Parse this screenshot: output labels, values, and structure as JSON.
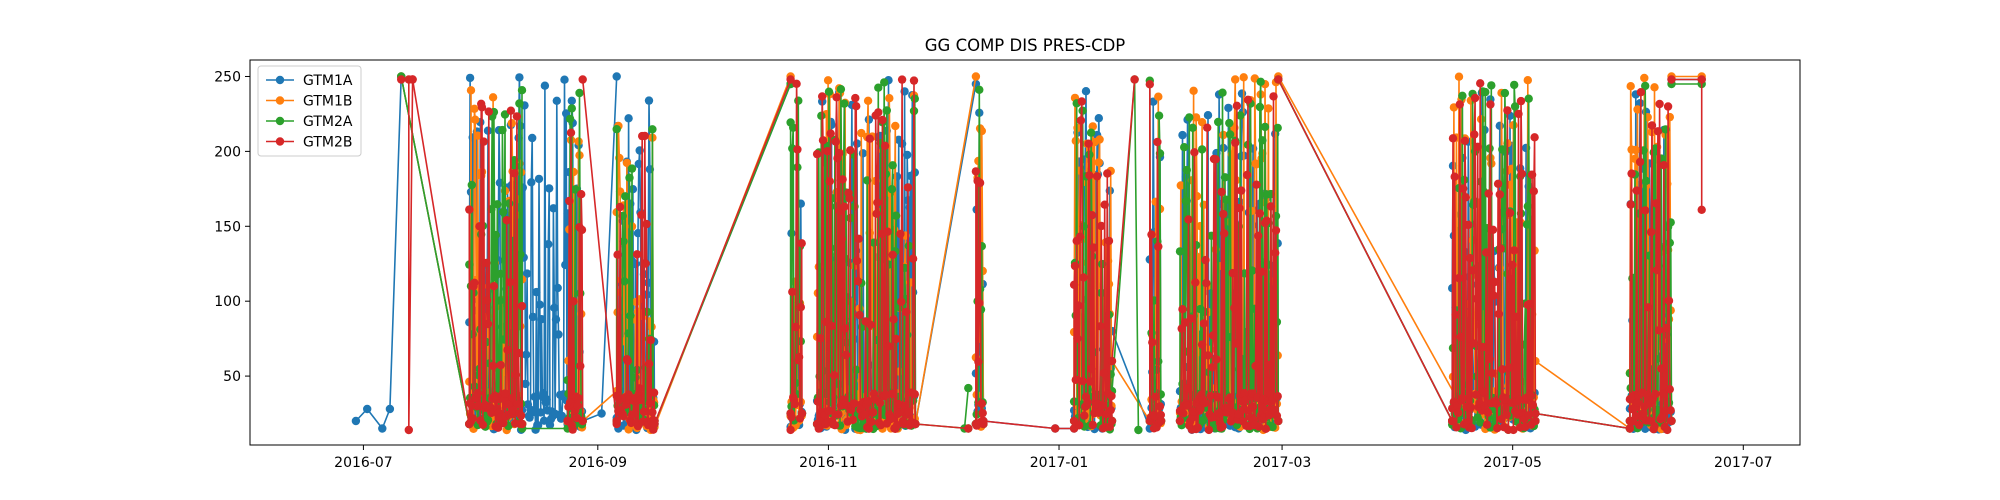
{
  "chart_data": {
    "type": "line",
    "title": "GG COMP DIS PRES-CDP",
    "xlabel": "",
    "ylabel": "",
    "xlim": [
      "2016-06-01",
      "2017-07-16"
    ],
    "ylim": [
      4,
      261
    ],
    "x_ticks": [
      "2016-07",
      "2016-09",
      "2016-11",
      "2017-01",
      "2017-03",
      "2017-05",
      "2017-07"
    ],
    "y_ticks": [
      50,
      100,
      150,
      200,
      250
    ],
    "grid": false,
    "legend_position": "top-left",
    "series": [
      {
        "name": "GTM1A",
        "color": "#1f77b4",
        "segments": [
          {
            "x": [
              "2016-06-29",
              "2016-07-02",
              "2016-07-06",
              "2016-07-08",
              "2016-07-11",
              "2016-07-29"
            ],
            "y": [
              20,
              28,
              15,
              28,
              250,
              18
            ]
          },
          {
            "x": [
              "2016-07-29",
              "2016-08-12",
              "2016-08-16",
              "2016-08-20",
              "2016-08-24"
            ],
            "y": [
              18,
              18,
              20,
              45,
              18
            ],
            "dense": [
              14,
              250
            ]
          },
          {
            "x": [
              "2016-08-24",
              "2016-08-28"
            ],
            "y": [
              20,
              20
            ],
            "dense": [
              14,
              245
            ]
          },
          {
            "x": [
              "2016-08-28",
              "2016-09-02",
              "2016-09-06"
            ],
            "y": [
              20,
              25,
              250
            ]
          },
          {
            "x": [
              "2016-09-06",
              "2016-09-16"
            ],
            "y": [
              20,
              20
            ],
            "dense": [
              14,
              238
            ]
          },
          {
            "x": [
              "2016-09-16",
              "2016-10-22"
            ],
            "y": [
              18,
              245
            ]
          },
          {
            "x": [
              "2016-10-22",
              "2016-10-25"
            ],
            "y": [
              25,
              25
            ],
            "dense": [
              14,
              245
            ]
          },
          {
            "x": [
              "2016-10-29",
              "2016-11-24"
            ],
            "y": [
              18,
              18
            ],
            "dense": [
              14,
              248
            ]
          },
          {
            "x": [
              "2016-11-24",
              "2016-12-10"
            ],
            "y": [
              18,
              245
            ]
          },
          {
            "x": [
              "2016-12-10",
              "2016-12-12"
            ],
            "y": [
              18,
              18
            ],
            "dense": [
              14,
              245
            ]
          },
          {
            "x": [
              "2016-12-12",
              "2016-12-31",
              "2017-01-05"
            ],
            "y": [
              20,
              15,
              15
            ]
          },
          {
            "x": [
              "2017-01-05",
              "2017-01-15"
            ],
            "y": [
              20,
              20
            ],
            "dense": [
              14,
              248
            ]
          },
          {
            "x": [
              "2017-01-15",
              "2017-01-25"
            ],
            "y": [
              80,
              15
            ]
          },
          {
            "x": [
              "2017-01-25",
              "2017-01-28"
            ],
            "y": [
              20,
              20
            ],
            "dense": [
              14,
              248
            ]
          },
          {
            "x": [
              "2017-02-02",
              "2017-02-28"
            ],
            "y": [
              20,
              20
            ],
            "dense": [
              14,
              248
            ]
          },
          {
            "x": [
              "2017-02-28",
              "2017-04-15"
            ],
            "y": [
              248,
              20
            ]
          },
          {
            "x": [
              "2017-04-15",
              "2017-05-07"
            ],
            "y": [
              20,
              20
            ],
            "dense": [
              14,
              248
            ]
          },
          {
            "x": [
              "2017-05-07",
              "2017-06-01"
            ],
            "y": [
              25,
              15
            ]
          },
          {
            "x": [
              "2017-06-01",
              "2017-06-12"
            ],
            "y": [
              20,
              20
            ],
            "dense": [
              14,
              245
            ]
          },
          {
            "x": [
              "2017-06-12",
              "2017-06-20"
            ],
            "y": [
              248,
              248
            ]
          }
        ]
      },
      {
        "name": "GTM1B",
        "color": "#ff7f0e",
        "segments": [
          {
            "x": [
              "2016-07-11",
              "2016-07-29"
            ],
            "y": [
              250,
              18
            ]
          },
          {
            "x": [
              "2016-07-29",
              "2016-08-12"
            ],
            "y": [
              18,
              18
            ],
            "dense": [
              14,
              245
            ]
          },
          {
            "x": [
              "2016-08-24",
              "2016-08-28"
            ],
            "y": [
              20,
              20
            ],
            "dense": [
              14,
              250
            ]
          },
          {
            "x": [
              "2016-08-28",
              "2016-09-06"
            ],
            "y": [
              20,
              40
            ]
          },
          {
            "x": [
              "2016-09-06",
              "2016-09-16"
            ],
            "y": [
              20,
              20
            ],
            "dense": [
              14,
              238
            ]
          },
          {
            "x": [
              "2016-09-16",
              "2016-10-22"
            ],
            "y": [
              16,
              250
            ]
          },
          {
            "x": [
              "2016-10-22",
              "2016-10-25"
            ],
            "y": [
              25,
              25
            ],
            "dense": [
              14,
              250
            ]
          },
          {
            "x": [
              "2016-10-29",
              "2016-11-24"
            ],
            "y": [
              18,
              18
            ],
            "dense": [
              14,
              250
            ]
          },
          {
            "x": [
              "2016-11-24",
              "2016-12-10"
            ],
            "y": [
              18,
              250
            ]
          },
          {
            "x": [
              "2016-12-10",
              "2016-12-12"
            ],
            "y": [
              18,
              18
            ],
            "dense": [
              14,
              248
            ]
          },
          {
            "x": [
              "2017-01-05",
              "2017-01-15"
            ],
            "y": [
              20,
              20
            ],
            "dense": [
              14,
              250
            ]
          },
          {
            "x": [
              "2017-01-15",
              "2017-01-25"
            ],
            "y": [
              60,
              20
            ]
          },
          {
            "x": [
              "2017-01-25",
              "2017-01-28"
            ],
            "y": [
              20,
              20
            ],
            "dense": [
              14,
              250
            ]
          },
          {
            "x": [
              "2017-02-02",
              "2017-02-28"
            ],
            "y": [
              20,
              20
            ],
            "dense": [
              14,
              250
            ]
          },
          {
            "x": [
              "2017-02-28",
              "2017-04-20"
            ],
            "y": [
              250,
              18
            ]
          },
          {
            "x": [
              "2017-04-15",
              "2017-05-07"
            ],
            "y": [
              20,
              20
            ],
            "dense": [
              14,
              250
            ]
          },
          {
            "x": [
              "2017-05-07",
              "2017-06-01"
            ],
            "y": [
              60,
              15
            ]
          },
          {
            "x": [
              "2017-06-01",
              "2017-06-12"
            ],
            "y": [
              20,
              20
            ],
            "dense": [
              14,
              250
            ]
          },
          {
            "x": [
              "2017-06-12",
              "2017-06-20"
            ],
            "y": [
              250,
              250
            ]
          }
        ]
      },
      {
        "name": "GTM2A",
        "color": "#2ca02c",
        "segments": [
          {
            "x": [
              "2016-07-11",
              "2016-07-29"
            ],
            "y": [
              250,
              18
            ]
          },
          {
            "x": [
              "2016-07-29",
              "2016-08-12"
            ],
            "y": [
              18,
              18
            ],
            "dense": [
              14,
              248
            ]
          },
          {
            "x": [
              "2016-08-12",
              "2016-08-24"
            ],
            "y": [
              15,
              15
            ]
          },
          {
            "x": [
              "2016-08-24",
              "2016-08-28"
            ],
            "y": [
              20,
              20
            ],
            "dense": [
              14,
              248
            ]
          },
          {
            "x": [
              "2016-09-06",
              "2016-09-16"
            ],
            "y": [
              20,
              20
            ],
            "dense": [
              14,
              235
            ]
          },
          {
            "x": [
              "2016-09-16",
              "2016-10-22"
            ],
            "y": [
              18,
              245
            ]
          },
          {
            "x": [
              "2016-10-22",
              "2016-10-25"
            ],
            "y": [
              25,
              25
            ],
            "dense": [
              14,
              248
            ]
          },
          {
            "x": [
              "2016-10-29",
              "2016-11-24"
            ],
            "y": [
              18,
              18
            ],
            "dense": [
              14,
              248
            ]
          },
          {
            "x": [
              "2016-11-24",
              "2016-12-08"
            ],
            "y": [
              18,
              15
            ]
          },
          {
            "x": [
              "2016-12-07",
              "2016-12-08"
            ],
            "y": [
              15,
              42
            ]
          },
          {
            "x": [
              "2016-12-10",
              "2016-12-12"
            ],
            "y": [
              18,
              18
            ],
            "dense": [
              14,
              248
            ]
          },
          {
            "x": [
              "2017-01-05",
              "2017-01-15"
            ],
            "y": [
              20,
              20
            ],
            "dense": [
              14,
              248
            ]
          },
          {
            "x": [
              "2017-01-15",
              "2017-01-21",
              "2017-01-22"
            ],
            "y": [
              40,
              248,
              14
            ]
          },
          {
            "x": [
              "2017-01-25",
              "2017-01-28"
            ],
            "y": [
              20,
              20
            ],
            "dense": [
              14,
              248
            ]
          },
          {
            "x": [
              "2017-02-02",
              "2017-02-28"
            ],
            "y": [
              20,
              20
            ],
            "dense": [
              14,
              248
            ]
          },
          {
            "x": [
              "2017-02-28",
              "2017-04-15"
            ],
            "y": [
              248,
              20
            ]
          },
          {
            "x": [
              "2017-04-15",
              "2017-05-07"
            ],
            "y": [
              20,
              20
            ],
            "dense": [
              14,
              245
            ]
          },
          {
            "x": [
              "2017-05-07",
              "2017-06-01"
            ],
            "y": [
              25,
              15
            ]
          },
          {
            "x": [
              "2017-06-01",
              "2017-06-12"
            ],
            "y": [
              20,
              20
            ],
            "dense": [
              14,
              245
            ]
          },
          {
            "x": [
              "2017-06-12",
              "2017-06-20"
            ],
            "y": [
              245,
              245
            ]
          }
        ]
      },
      {
        "name": "GTM2B",
        "color": "#d62728",
        "segments": [
          {
            "x": [
              "2016-07-11",
              "2016-07-13",
              "2016-07-13",
              "2016-07-14"
            ],
            "y": [
              248,
              248,
              14,
              248
            ]
          },
          {
            "x": [
              "2016-07-14",
              "2016-07-29"
            ],
            "y": [
              248,
              18
            ]
          },
          {
            "x": [
              "2016-07-29",
              "2016-08-12"
            ],
            "y": [
              18,
              18
            ],
            "dense": [
              14,
              238
            ]
          },
          {
            "x": [
              "2016-08-24",
              "2016-08-28"
            ],
            "y": [
              20,
              20
            ],
            "dense": [
              14,
              248
            ]
          },
          {
            "x": [
              "2016-08-28",
              "2016-09-06"
            ],
            "y": [
              248,
              18
            ]
          },
          {
            "x": [
              "2016-09-06",
              "2016-09-16"
            ],
            "y": [
              20,
              20
            ],
            "dense": [
              14,
              230
            ]
          },
          {
            "x": [
              "2016-09-16",
              "2016-10-22"
            ],
            "y": [
              18,
              248
            ]
          },
          {
            "x": [
              "2016-10-22",
              "2016-10-25"
            ],
            "y": [
              25,
              25
            ],
            "dense": [
              14,
              248
            ]
          },
          {
            "x": [
              "2016-10-29",
              "2016-11-24"
            ],
            "y": [
              18,
              18
            ],
            "dense": [
              14,
              248
            ]
          },
          {
            "x": [
              "2016-11-24",
              "2016-12-08"
            ],
            "y": [
              18,
              15
            ]
          },
          {
            "x": [
              "2016-12-10",
              "2016-12-12"
            ],
            "y": [
              18,
              18
            ],
            "dense": [
              14,
              248
            ]
          },
          {
            "x": [
              "2016-12-12",
              "2016-12-31",
              "2017-01-05"
            ],
            "y": [
              20,
              15,
              15
            ]
          },
          {
            "x": [
              "2017-01-05",
              "2017-01-15"
            ],
            "y": [
              20,
              20
            ],
            "dense": [
              14,
              248
            ]
          },
          {
            "x": [
              "2017-01-15",
              "2017-01-21"
            ],
            "y": [
              60,
              248
            ]
          },
          {
            "x": [
              "2017-01-25",
              "2017-01-28"
            ],
            "y": [
              20,
              20
            ],
            "dense": [
              14,
              248
            ]
          },
          {
            "x": [
              "2017-02-02",
              "2017-02-28"
            ],
            "y": [
              20,
              20
            ],
            "dense": [
              14,
              248
            ]
          },
          {
            "x": [
              "2017-02-28",
              "2017-04-15"
            ],
            "y": [
              248,
              20
            ]
          },
          {
            "x": [
              "2017-04-15",
              "2017-05-07"
            ],
            "y": [
              20,
              20
            ],
            "dense": [
              14,
              248
            ]
          },
          {
            "x": [
              "2017-05-07",
              "2017-06-01"
            ],
            "y": [
              25,
              15
            ]
          },
          {
            "x": [
              "2017-06-01",
              "2017-06-12"
            ],
            "y": [
              20,
              20
            ],
            "dense": [
              14,
              240
            ]
          },
          {
            "x": [
              "2017-06-12",
              "2017-06-20",
              "2017-06-20"
            ],
            "y": [
              248,
              248,
              161
            ]
          }
        ]
      }
    ]
  }
}
